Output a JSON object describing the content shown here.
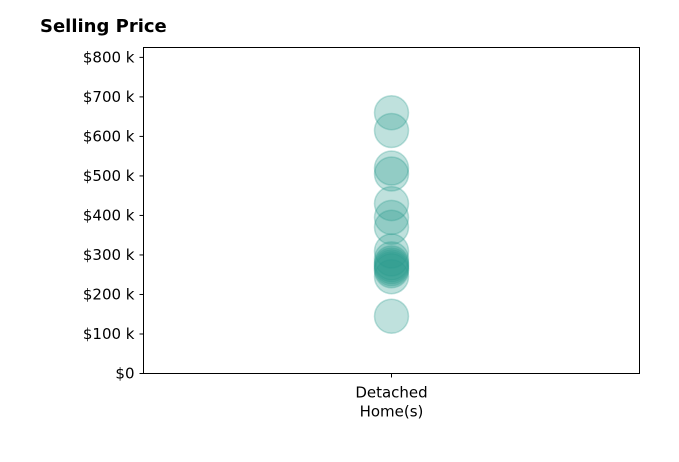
{
  "chart_data": {
    "type": "scatter",
    "title": "Selling Price",
    "xlabel": "",
    "ylabel": "",
    "categories": [
      "Detached\nHome(s)"
    ],
    "ylim": [
      0,
      825000
    ],
    "y_ticks": [
      {
        "value": 0,
        "label": "$0"
      },
      {
        "value": 100000,
        "label": "$100 k"
      },
      {
        "value": 200000,
        "label": "$200 k"
      },
      {
        "value": 300000,
        "label": "$300 k"
      },
      {
        "value": 400000,
        "label": "$400 k"
      },
      {
        "value": 500000,
        "label": "$500 k"
      },
      {
        "value": 600000,
        "label": "$600 k"
      },
      {
        "value": 700000,
        "label": "$700 k"
      },
      {
        "value": 800000,
        "label": "$800 k"
      }
    ],
    "series": [
      {
        "category": "Detached\nHome(s)",
        "values": [
          145000,
          245000,
          260000,
          265000,
          270000,
          275000,
          280000,
          290000,
          310000,
          370000,
          395000,
          430000,
          505000,
          520000,
          615000,
          660000
        ]
      }
    ],
    "marker_color": "#2a9d8f",
    "marker_opacity": 0.3,
    "grid": false,
    "legend": "none"
  }
}
